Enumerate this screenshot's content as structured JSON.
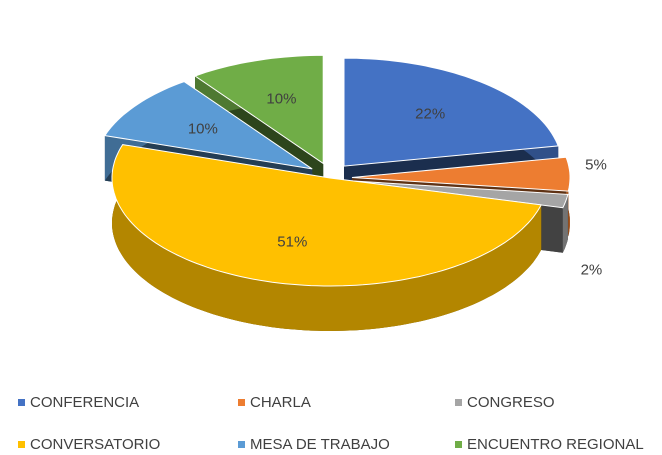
{
  "chart_data": {
    "type": "pie3d",
    "categories": [
      "CONFERENCIA",
      "CHARLA",
      "CONGRESO",
      "CONVERSATORIO",
      "MESA DE TRABAJO",
      "ENCUENTRO REGIONAL"
    ],
    "values": [
      22,
      5,
      2,
      51,
      10,
      10
    ],
    "value_labels": [
      "22%",
      "5%",
      "2%",
      "51%",
      "10%",
      "10%"
    ],
    "colors": [
      "#4472c4",
      "#ed7d31",
      "#a5a5a5",
      "#ffc000",
      "#5b9bd5",
      "#70ad47"
    ],
    "legend": "bottom"
  }
}
